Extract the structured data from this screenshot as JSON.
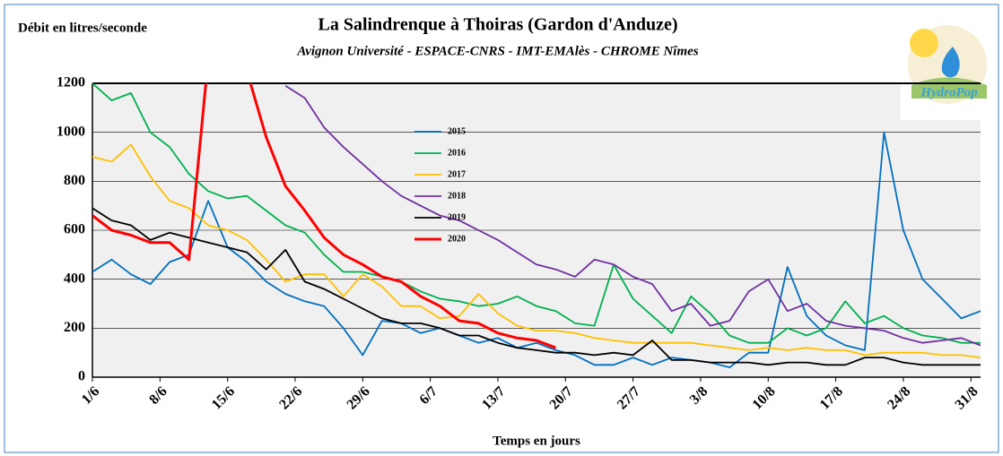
{
  "chart_data": {
    "type": "line",
    "title": "La Salindrenque à Thoiras (Gardon d'Anduze)",
    "subtitle": "Avignon Université - ESPACE-CNRS - IMT-EMAlès - CHROME Nîmes",
    "y_label": "Débit en litres/seconde",
    "x_label": "Temps en jours",
    "logo": "HydroPop",
    "grid": true,
    "xlim": [
      0,
      92
    ],
    "ylim": [
      0,
      1200
    ],
    "yticks": [
      0,
      200,
      400,
      600,
      800,
      1000,
      1200
    ],
    "xticks": [
      {
        "value": 0,
        "label": "1/6"
      },
      {
        "value": 7,
        "label": "8/6"
      },
      {
        "value": 14,
        "label": "15/6"
      },
      {
        "value": 21,
        "label": "22/6"
      },
      {
        "value": 28,
        "label": "29/6"
      },
      {
        "value": 35,
        "label": "6/7"
      },
      {
        "value": 42,
        "label": "13/7"
      },
      {
        "value": 49,
        "label": "20/7"
      },
      {
        "value": 56,
        "label": "27/7"
      },
      {
        "value": 63,
        "label": "3/8"
      },
      {
        "value": 70,
        "label": "10/8"
      },
      {
        "value": 77,
        "label": "17/8"
      },
      {
        "value": 84,
        "label": "24/8"
      },
      {
        "value": 91,
        "label": "31/8"
      }
    ],
    "x": [
      0,
      2,
      4,
      6,
      8,
      10,
      12,
      14,
      16,
      18,
      20,
      22,
      24,
      26,
      28,
      30,
      32,
      34,
      36,
      38,
      40,
      42,
      44,
      46,
      48,
      50,
      52,
      54,
      56,
      58,
      60,
      62,
      64,
      66,
      68,
      70,
      72,
      74,
      76,
      78,
      80,
      82,
      84,
      86,
      88,
      90,
      92
    ],
    "series": [
      {
        "name": "2015",
        "color": "#0070c0",
        "values": [
          430,
          480,
          420,
          380,
          470,
          500,
          720,
          530,
          470,
          390,
          340,
          310,
          290,
          200,
          90,
          230,
          220,
          180,
          200,
          170,
          140,
          160,
          120,
          140,
          110,
          90,
          50,
          50,
          80,
          50,
          80,
          70,
          60,
          40,
          100,
          100,
          450,
          250,
          170,
          130,
          110,
          1000,
          600,
          400,
          320,
          240,
          270
        ]
      },
      {
        "name": "2016",
        "color": "#00b050",
        "values": [
          1200,
          1130,
          1160,
          1000,
          940,
          830,
          760,
          730,
          740,
          680,
          620,
          590,
          500,
          430,
          430,
          410,
          390,
          350,
          320,
          310,
          290,
          300,
          330,
          290,
          270,
          220,
          210,
          460,
          320,
          250,
          180,
          330,
          260,
          170,
          140,
          140,
          200,
          170,
          200,
          310,
          220,
          250,
          200,
          170,
          160,
          140,
          140
        ]
      },
      {
        "name": "2017",
        "color": "#ffc000",
        "values": [
          900,
          880,
          950,
          820,
          720,
          690,
          620,
          600,
          560,
          480,
          390,
          420,
          420,
          330,
          420,
          370,
          290,
          290,
          240,
          250,
          340,
          260,
          210,
          190,
          190,
          180,
          160,
          150,
          140,
          140,
          140,
          140,
          130,
          120,
          110,
          120,
          110,
          120,
          110,
          110,
          90,
          100,
          100,
          100,
          90,
          90,
          80
        ]
      },
      {
        "name": "2018",
        "color": "#7030a0",
        "values": [
          null,
          null,
          null,
          null,
          null,
          null,
          null,
          null,
          null,
          null,
          1190,
          1140,
          1020,
          940,
          870,
          800,
          740,
          700,
          660,
          640,
          600,
          560,
          510,
          460,
          440,
          410,
          480,
          460,
          410,
          380,
          270,
          300,
          210,
          230,
          350,
          400,
          270,
          300,
          230,
          210,
          200,
          190,
          160,
          140,
          150,
          160,
          130
        ]
      },
      {
        "name": "2019",
        "color": "#000000",
        "values": [
          690,
          640,
          620,
          560,
          590,
          570,
          550,
          530,
          510,
          440,
          520,
          390,
          360,
          320,
          280,
          240,
          220,
          220,
          200,
          170,
          170,
          140,
          120,
          110,
          100,
          100,
          90,
          100,
          90,
          150,
          70,
          70,
          60,
          60,
          60,
          50,
          60,
          60,
          50,
          50,
          80,
          80,
          60,
          50,
          50,
          50,
          50
        ]
      },
      {
        "name": "2020",
        "color": "#ff0000",
        "values": [
          660,
          600,
          580,
          550,
          550,
          480,
          1300,
          1300,
          1250,
          980,
          780,
          680,
          570,
          500,
          460,
          410,
          390,
          330,
          290,
          230,
          220,
          180,
          160,
          150,
          120,
          null,
          null,
          null,
          null,
          null,
          null,
          null,
          null,
          null,
          null,
          null,
          null,
          null,
          null,
          null,
          null,
          null,
          null,
          null,
          null,
          null,
          null
        ]
      }
    ]
  }
}
